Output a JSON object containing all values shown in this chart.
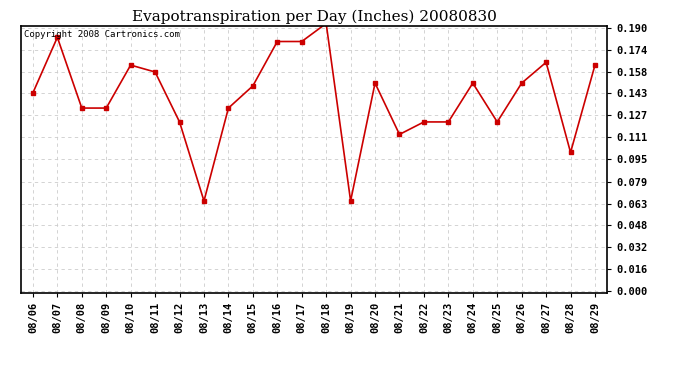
{
  "title": "Evapotranspiration per Day (Inches) 20080830",
  "copyright_text": "Copyright 2008 Cartronics.com",
  "dates": [
    "08/06",
    "08/07",
    "08/08",
    "08/09",
    "08/10",
    "08/11",
    "08/12",
    "08/13",
    "08/14",
    "08/15",
    "08/16",
    "08/17",
    "08/18",
    "08/19",
    "08/20",
    "08/21",
    "08/22",
    "08/23",
    "08/24",
    "08/25",
    "08/26",
    "08/27",
    "08/28",
    "08/29"
  ],
  "values": [
    0.143,
    0.183,
    0.132,
    0.132,
    0.163,
    0.158,
    0.122,
    0.065,
    0.132,
    0.148,
    0.18,
    0.18,
    0.193,
    0.065,
    0.15,
    0.113,
    0.122,
    0.122,
    0.15,
    0.122,
    0.15,
    0.165,
    0.1,
    0.163
  ],
  "line_color": "#cc0000",
  "marker": "s",
  "marker_size": 3,
  "ylim": [
    0.0,
    0.19
  ],
  "yticks": [
    0.0,
    0.016,
    0.032,
    0.048,
    0.063,
    0.079,
    0.095,
    0.111,
    0.127,
    0.143,
    0.158,
    0.174,
    0.19
  ],
  "outer_background": "#ffffff",
  "plot_background": "#ffffff",
  "grid_color": "#cccccc",
  "title_fontsize": 11,
  "copyright_fontsize": 6.5,
  "tick_fontsize": 7.5
}
